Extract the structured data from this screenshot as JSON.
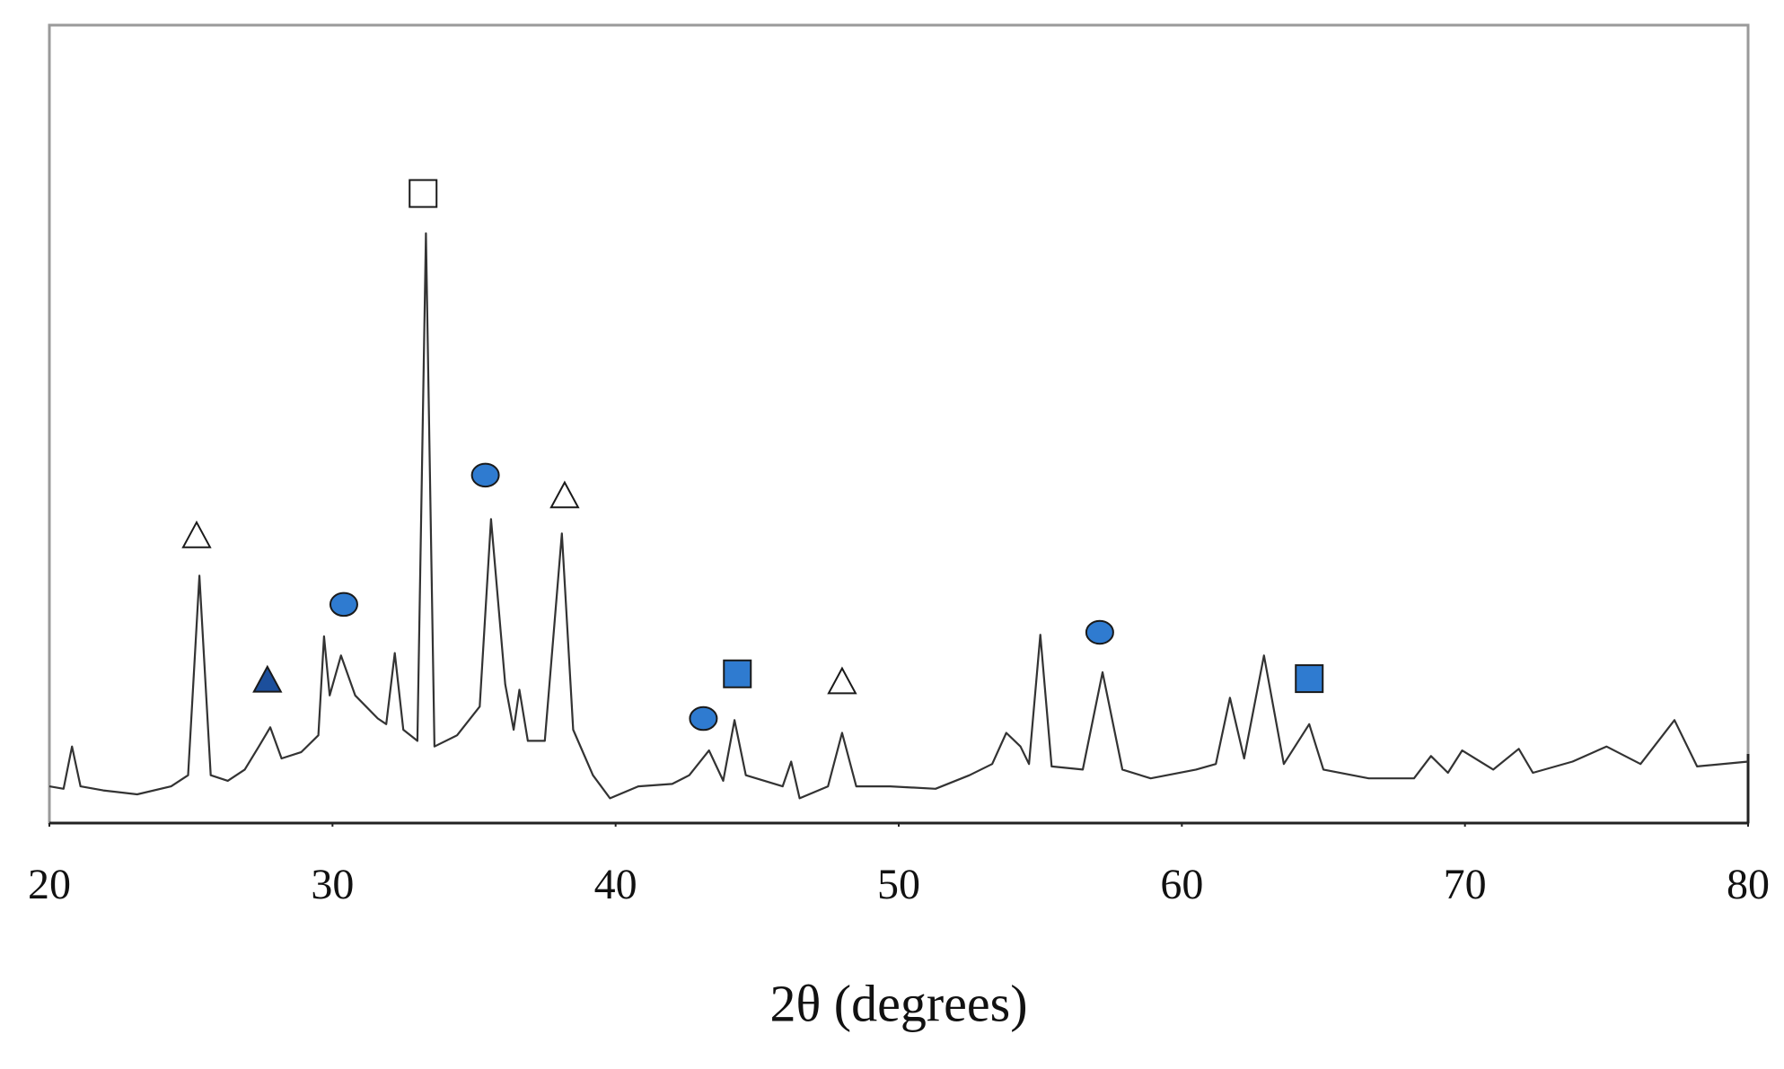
{
  "chart_data": {
    "type": "line",
    "xlabel": "2θ (degrees)",
    "xlim": [
      20,
      80
    ],
    "ylim": [
      0,
      100
    ],
    "xticks": [
      20,
      30,
      40,
      50,
      60,
      70,
      80
    ],
    "color": "#333333",
    "x": [
      20,
      20.5,
      20.8,
      21.1,
      21.9,
      23.1,
      24.3,
      24.9,
      25.3,
      25.7,
      26.3,
      26.9,
      27.4,
      27.8,
      28.2,
      28.9,
      29.5,
      29.7,
      29.9,
      30.3,
      30.8,
      31.6,
      31.9,
      32.2,
      32.5,
      33.0,
      33.3,
      33.6,
      34.4,
      35.2,
      35.6,
      36.1,
      36.4,
      36.6,
      36.9,
      37.5,
      38.1,
      38.5,
      39.2,
      39.8,
      40.8,
      42.0,
      42.6,
      43.3,
      43.8,
      44.2,
      44.6,
      45.9,
      46.2,
      46.5,
      47.5,
      48.0,
      48.5,
      49.7,
      51.3,
      52.5,
      53.3,
      53.8,
      54.3,
      54.6,
      55.0,
      55.4,
      56.5,
      57.2,
      57.9,
      58.9,
      60.5,
      61.2,
      61.7,
      62.2,
      62.9,
      63.6,
      64.5,
      65.0,
      66.6,
      68.2,
      68.8,
      69.4,
      69.9,
      71.0,
      71.9,
      72.4,
      73.8,
      75.0,
      76.2,
      77.4,
      78.2,
      80
    ],
    "values": [
      4.6,
      4.3,
      9.6,
      4.6,
      4.1,
      3.6,
      4.6,
      6,
      31,
      6,
      5.3,
      6.7,
      9.6,
      12,
      8.1,
      8.9,
      11,
      23.4,
      16,
      21,
      16,
      13.1,
      12.4,
      21.3,
      11.7,
      10.3,
      73.9,
      9.6,
      11,
      14.6,
      38.1,
      17.4,
      11.7,
      16.7,
      10.3,
      10.3,
      36.3,
      11.7,
      6,
      3.1,
      4.6,
      4.9,
      6,
      9.1,
      5.3,
      12.9,
      6,
      4.6,
      7.7,
      3.1,
      4.6,
      11.3,
      4.6,
      4.6,
      4.3,
      6,
      7.4,
      11.3,
      9.6,
      7.4,
      23.6,
      7.1,
      6.7,
      18.9,
      6.7,
      5.6,
      6.7,
      7.4,
      15.7,
      8.1,
      21,
      7.4,
      12.4,
      6.7,
      5.6,
      5.6,
      8.4,
      6.3,
      9.1,
      6.7,
      9.3,
      6.3,
      7.7,
      9.6,
      7.4,
      12.9,
      7.1,
      7.7
    ],
    "markers": [
      {
        "x": 25.2,
        "y": 36,
        "symbol": "open-triangle"
      },
      {
        "x": 27.7,
        "y": 17.9,
        "symbol": "filled-triangle"
      },
      {
        "x": 30.4,
        "y": 27.4,
        "symbol": "circle"
      },
      {
        "x": 33.2,
        "y": 78.9,
        "symbol": "open-square"
      },
      {
        "x": 35.4,
        "y": 43.6,
        "symbol": "circle"
      },
      {
        "x": 38.2,
        "y": 41,
        "symbol": "open-triangle"
      },
      {
        "x": 43.1,
        "y": 13.1,
        "symbol": "circle"
      },
      {
        "x": 44.3,
        "y": 18.7,
        "symbol": "filled-square"
      },
      {
        "x": 48.0,
        "y": 17.7,
        "symbol": "open-triangle"
      },
      {
        "x": 57.1,
        "y": 23.9,
        "symbol": "circle"
      },
      {
        "x": 64.5,
        "y": 18.1,
        "symbol": "filled-square"
      }
    ],
    "marker_colors": {
      "open": "#ffffff",
      "blue": "#2f7bd0",
      "dark_blue": "#1c4f9c",
      "outline": "#1a1a1a"
    }
  }
}
